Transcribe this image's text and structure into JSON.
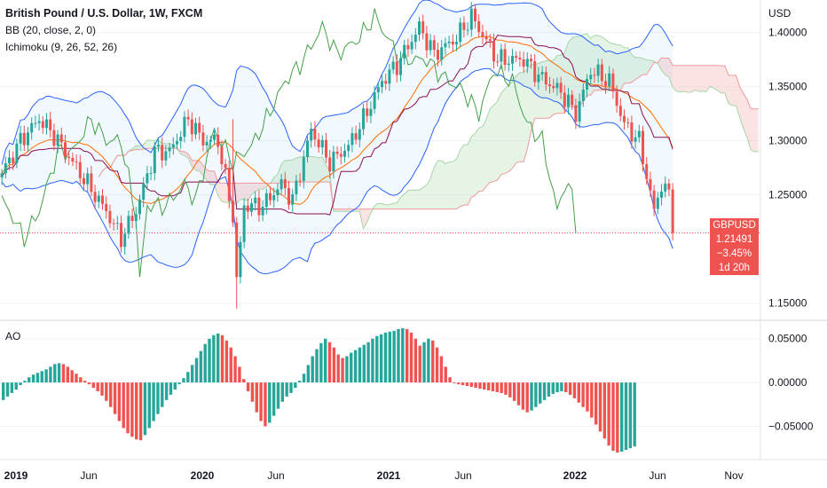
{
  "header": {
    "title": "British Pound / U.S. Dollar, 1W, FXCM",
    "bb_label": "BB (20, close, 2, 0)",
    "ichimoku_label": "Ichimoku (9, 26, 52, 26)"
  },
  "price_axis": {
    "currency": "USD",
    "ticks": [
      {
        "label": "1.40000",
        "value": 1.4
      },
      {
        "label": "1.35000",
        "value": 1.35
      },
      {
        "label": "1.30000",
        "value": 1.3
      },
      {
        "label": "1.25000",
        "value": 1.25
      },
      {
        "label": "1.15000",
        "value": 1.15
      }
    ]
  },
  "ao_axis": {
    "label": "AO",
    "ticks": [
      {
        "label": "0.05000",
        "value": 0.05
      },
      {
        "label": "0.00000",
        "value": 0.0
      },
      {
        "label": "−0.05000",
        "value": -0.05
      }
    ]
  },
  "time_axis": {
    "ticks": [
      {
        "label": "2019",
        "bold": true
      },
      {
        "label": "Jun",
        "bold": false
      },
      {
        "label": "2020",
        "bold": true
      },
      {
        "label": "Jun",
        "bold": false
      },
      {
        "label": "2021",
        "bold": true
      },
      {
        "label": "Jun",
        "bold": false
      },
      {
        "label": "2022",
        "bold": true
      },
      {
        "label": "Jun",
        "bold": false
      },
      {
        "label": "Nov",
        "bold": false
      }
    ]
  },
  "last_price": {
    "symbol": "GBPUSD",
    "price": "1.21491",
    "change": "−3.45%",
    "countdown": "1d 20h",
    "value": 1.21491
  },
  "colors": {
    "up": "#26a69a",
    "down": "#ef5350",
    "bb_band": "#2962ff",
    "bb_basis": "#ff6d00",
    "kijun": "#880e4f",
    "chikou": "#43a047",
    "cloud_bull": "#a5d6a7",
    "cloud_bear": "#ef9a9a"
  },
  "chart_data": {
    "type": "candlestick",
    "title": "British Pound / U.S. Dollar, 1W, FXCM",
    "ylim": [
      1.135,
      1.43
    ],
    "ao_ylim": [
      -0.085,
      0.07
    ],
    "close_anchors": [
      [
        "2018-12-31",
        1.27
      ],
      [
        "2019-02-04",
        1.3
      ],
      [
        "2019-03-11",
        1.32
      ],
      [
        "2019-04-08",
        1.305
      ],
      [
        "2019-05-13",
        1.28
      ],
      [
        "2019-06-17",
        1.255
      ],
      [
        "2019-07-15",
        1.235
      ],
      [
        "2019-08-12",
        1.21
      ],
      [
        "2019-09-09",
        1.235
      ],
      [
        "2019-10-14",
        1.29
      ],
      [
        "2019-11-11",
        1.29
      ],
      [
        "2019-12-16",
        1.32
      ],
      [
        "2020-01-13",
        1.3
      ],
      [
        "2020-02-10",
        1.3
      ],
      [
        "2020-03-09",
        1.23
      ],
      [
        "2020-03-16",
        1.17
      ],
      [
        "2020-03-30",
        1.24
      ],
      [
        "2020-05-04",
        1.24
      ],
      [
        "2020-06-08",
        1.26
      ],
      [
        "2020-06-29",
        1.245
      ],
      [
        "2020-08-03",
        1.31
      ],
      [
        "2020-09-07",
        1.28
      ],
      [
        "2020-10-12",
        1.295
      ],
      [
        "2020-11-09",
        1.32
      ],
      [
        "2020-12-14",
        1.355
      ],
      [
        "2021-01-11",
        1.37
      ],
      [
        "2021-02-22",
        1.405
      ],
      [
        "2021-03-22",
        1.38
      ],
      [
        "2021-05-03",
        1.395
      ],
      [
        "2021-05-31",
        1.415
      ],
      [
        "2021-07-19",
        1.375
      ],
      [
        "2021-09-06",
        1.375
      ],
      [
        "2021-10-04",
        1.36
      ],
      [
        "2021-11-15",
        1.345
      ],
      [
        "2021-12-13",
        1.325
      ],
      [
        "2022-01-10",
        1.365
      ],
      [
        "2022-02-14",
        1.355
      ],
      [
        "2022-03-14",
        1.315
      ],
      [
        "2022-04-11",
        1.3
      ],
      [
        "2022-05-09",
        1.235
      ],
      [
        "2022-05-23",
        1.26
      ],
      [
        "2022-06-06",
        1.25
      ],
      [
        "2022-06-13",
        1.2149
      ]
    ],
    "ao_values": [
      -0.02,
      -0.016,
      -0.012,
      -0.008,
      -0.003,
      0.002,
      0.006,
      0.009,
      0.011,
      0.013,
      0.015,
      0.018,
      0.021,
      0.022,
      0.021,
      0.018,
      0.014,
      0.01,
      0.006,
      0.002,
      -0.002,
      -0.006,
      -0.01,
      -0.015,
      -0.021,
      -0.028,
      -0.036,
      -0.044,
      -0.052,
      -0.058,
      -0.062,
      -0.065,
      -0.066,
      -0.06,
      -0.052,
      -0.044,
      -0.036,
      -0.028,
      -0.02,
      -0.014,
      -0.008,
      -0.002,
      0.005,
      0.012,
      0.02,
      0.028,
      0.036,
      0.044,
      0.05,
      0.054,
      0.056,
      0.054,
      0.048,
      0.04,
      0.03,
      0.018,
      0.004,
      -0.01,
      -0.022,
      -0.034,
      -0.044,
      -0.05,
      -0.046,
      -0.038,
      -0.03,
      -0.022,
      -0.016,
      -0.012,
      -0.006,
      0.002,
      0.01,
      0.02,
      0.03,
      0.038,
      0.045,
      0.05,
      0.046,
      0.04,
      0.032,
      0.028,
      0.03,
      0.034,
      0.037,
      0.04,
      0.043,
      0.046,
      0.05,
      0.053,
      0.055,
      0.057,
      0.058,
      0.059,
      0.061,
      0.062,
      0.061,
      0.057,
      0.05,
      0.042,
      0.046,
      0.05,
      0.048,
      0.04,
      0.03,
      0.018,
      0.006,
      0.0,
      -0.002,
      -0.003,
      -0.004,
      -0.005,
      -0.006,
      -0.007,
      -0.008,
      -0.009,
      -0.01,
      -0.011,
      -0.012,
      -0.014,
      -0.017,
      -0.021,
      -0.026,
      -0.031,
      -0.034,
      -0.032,
      -0.028,
      -0.024,
      -0.02,
      -0.016,
      -0.013,
      -0.011,
      -0.01,
      -0.011,
      -0.014,
      -0.018,
      -0.023,
      -0.028,
      -0.033,
      -0.04,
      -0.048,
      -0.056,
      -0.064,
      -0.072,
      -0.078,
      -0.08,
      -0.079,
      -0.077,
      -0.075,
      -0.073
    ]
  }
}
